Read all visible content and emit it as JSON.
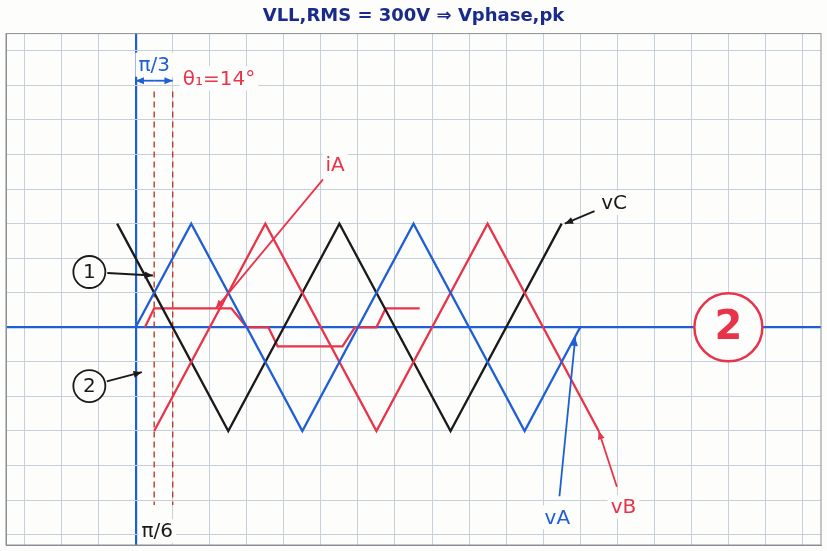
{
  "chart_data": {
    "type": "line",
    "title": "VLL,RMS = 300V ⇒ Vphase,pk",
    "xlim": [
      -210,
      1110
    ],
    "xticks": [
      -180,
      -120,
      -60,
      0,
      60,
      120,
      180,
      240,
      300,
      360,
      420,
      480,
      540,
      600,
      660,
      720,
      780,
      840,
      900,
      960,
      1020,
      1080
    ],
    "ylim": [
      -6.3,
      8.5
    ],
    "yticks": [
      -6,
      -5,
      -4,
      -3,
      -2,
      -1,
      0,
      1,
      2,
      3,
      4,
      5,
      6,
      7,
      8
    ],
    "grid": true,
    "tick_labels": false,
    "legend": "none",
    "series": [
      {
        "name": "vA",
        "color": "#1f5fd6",
        "x": [
          0,
          90,
          270,
          450,
          630,
          720
        ],
        "values": [
          0,
          3,
          -3,
          3,
          -3,
          0
        ],
        "label_at": [
          683,
          -5.5
        ],
        "arrow_to": [
          712,
          -0.3
        ]
      },
      {
        "name": "vB",
        "color": "#e8344a",
        "x": [
          30,
          210,
          390,
          570,
          750
        ],
        "values": [
          -3,
          3,
          -3,
          3,
          -3
        ],
        "label_at": [
          790,
          -5.2
        ],
        "arrow_to": [
          750,
          -3
        ]
      },
      {
        "name": "vC",
        "color": "#1a1a1a",
        "x": [
          -30,
          150,
          330,
          510,
          690
        ],
        "values": [
          3,
          -3,
          3,
          -3,
          3
        ],
        "label_at": [
          775,
          3.6
        ],
        "arrow_to": [
          695,
          3
        ]
      },
      {
        "name": "iA",
        "color": "#e8344a",
        "x": [
          15,
          30,
          155,
          180,
          215,
          230,
          335,
          355,
          390,
          405,
          460
        ],
        "values": [
          0,
          0.55,
          0.55,
          0,
          0,
          -0.55,
          -0.55,
          0,
          0,
          0.55,
          0.55
        ],
        "label_at": [
          323,
          4.7
        ],
        "arrow_to": [
          130,
          0.55
        ]
      }
    ],
    "vlines": [
      30,
      60
    ],
    "annotations": [
      {
        "text": "1",
        "marker": "circle",
        "x": -75,
        "y": 1.6,
        "color": "#1a1a1a",
        "arrow_to": [
          28,
          1.5
        ]
      },
      {
        "text": "2",
        "marker": "circle",
        "x": -75,
        "y": -1.7,
        "color": "#1a1a1a",
        "arrow_to": [
          10,
          -1.3
        ]
      },
      {
        "text": "π/3",
        "x": 30,
        "y": 7.6,
        "color": "#1f5fd6",
        "span": [
          0,
          60
        ]
      },
      {
        "text": "θ₁=14°",
        "x": 135,
        "y": 7.2,
        "color": "#e8344a"
      },
      {
        "text": "π/6",
        "x": 35,
        "y": -5.9,
        "color": "#1a1a1a"
      },
      {
        "text": "2",
        "marker": "large_circle",
        "x": 960,
        "y": 0,
        "color": "#e8344a"
      }
    ]
  }
}
